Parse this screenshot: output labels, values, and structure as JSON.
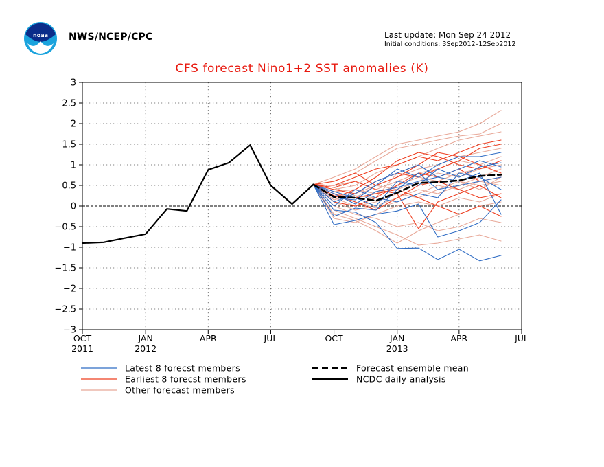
{
  "header": {
    "org": "NWS/NCEP/CPC",
    "last_update": "Last update: Mon Sep 24 2012",
    "initial_conditions": "Initial conditions: 3Sep2012–12Sep2012",
    "logo": "noaa-logo"
  },
  "colors": {
    "latest": "#2f6cc4",
    "earliest": "#ee3d1f",
    "other": "#e8a898",
    "analysis": "#000000",
    "mean": "#000000",
    "title": "#e8190f"
  },
  "chart_data": {
    "type": "line",
    "title": "CFS forecast Nino1+2 SST anomalies (K)",
    "xlabel": "",
    "ylabel": "",
    "ylim": [
      -3,
      3
    ],
    "yticks": [
      "3",
      "2.5",
      "2",
      "1.5",
      "1",
      "0.5",
      "0",
      "−0.5",
      "−1",
      "−1.5",
      "−2",
      "−2.5",
      "−3"
    ],
    "x_ticks": [
      {
        "label": "OCT",
        "year": "2011"
      },
      {
        "label": "JAN",
        "year": "2012"
      },
      {
        "label": "APR",
        "year": ""
      },
      {
        "label": "JUL",
        "year": ""
      },
      {
        "label": "OCT",
        "year": ""
      },
      {
        "label": "JAN",
        "year": "2013"
      },
      {
        "label": "APR",
        "year": ""
      },
      {
        "label": "JUL",
        "year": ""
      }
    ],
    "grid": true,
    "legend": {
      "position": "bottom",
      "items": [
        {
          "label": "Latest 8 forecst members",
          "style": "latest"
        },
        {
          "label": "Forecast ensemble mean",
          "style": "mean"
        },
        {
          "label": "Earliest 8 forecst members",
          "style": "earliest"
        },
        {
          "label": "NCDC daily analysis",
          "style": "analysis"
        },
        {
          "label": "Other forecast members",
          "style": "other"
        }
      ]
    },
    "analysis": {
      "name": "NCDC daily analysis",
      "x": [
        "2011-10",
        "2011-11",
        "2011-12",
        "2012-01",
        "2012-02",
        "2012-03",
        "2012-04",
        "2012-05",
        "2012-06",
        "2012-07",
        "2012-08",
        "2012-09"
      ],
      "y": [
        -0.9,
        -0.88,
        -0.78,
        -0.68,
        -0.07,
        -0.12,
        0.88,
        1.05,
        1.48,
        0.5,
        0.05,
        0.52
      ]
    },
    "ensemble_mean": {
      "name": "Forecast ensemble mean",
      "x": [
        "2012-09",
        "2012-10",
        "2012-11",
        "2012-12",
        "2013-01",
        "2013-02",
        "2013-03",
        "2013-04",
        "2013-05",
        "2013-06"
      ],
      "y": [
        0.52,
        0.22,
        0.2,
        0.13,
        0.32,
        0.56,
        0.58,
        0.62,
        0.73,
        0.76
      ]
    },
    "latest_members": {
      "name": "Latest 8 forecst members",
      "x": [
        "2012-09",
        "2012-10",
        "2012-11",
        "2012-12",
        "2013-01",
        "2013-02",
        "2013-03",
        "2013-04",
        "2013-05",
        "2013-06"
      ],
      "series": [
        [
          0.52,
          -0.1,
          -0.15,
          -0.4,
          -1.03,
          -1.02,
          -1.3,
          -1.05,
          -1.33,
          -1.2
        ],
        [
          0.52,
          -0.45,
          -0.35,
          -0.2,
          -0.12,
          0.05,
          -0.75,
          -0.6,
          -0.4,
          0.15
        ],
        [
          0.52,
          0.2,
          0.15,
          0.5,
          0.9,
          0.7,
          1.0,
          1.2,
          1.2,
          1.3
        ],
        [
          0.52,
          0.1,
          0.3,
          0.6,
          0.8,
          1.0,
          0.7,
          0.9,
          1.1,
          0.95
        ],
        [
          0.52,
          0.3,
          0.05,
          0.35,
          0.45,
          0.6,
          0.7,
          0.6,
          0.8,
          -0.2
        ],
        [
          0.52,
          -0.25,
          -0.05,
          -0.1,
          0.4,
          0.8,
          0.4,
          0.5,
          0.6,
          0.7
        ],
        [
          0.52,
          0.0,
          0.4,
          0.2,
          0.1,
          0.3,
          0.2,
          0.8,
          0.7,
          0.4
        ],
        [
          0.52,
          0.35,
          0.2,
          0.0,
          0.6,
          0.5,
          0.9,
          0.7,
          0.95,
          1.05
        ]
      ]
    },
    "earliest_members": {
      "name": "Earliest 8 forecst members",
      "x": [
        "2012-09",
        "2012-10",
        "2012-11",
        "2012-12",
        "2013-01",
        "2013-02",
        "2013-03",
        "2013-04",
        "2013-05",
        "2013-06"
      ],
      "series": [
        [
          0.52,
          0.5,
          0.7,
          0.9,
          1.0,
          1.2,
          1.1,
          1.3,
          1.5,
          1.6
        ],
        [
          0.52,
          0.4,
          0.3,
          0.6,
          0.8,
          0.7,
          0.9,
          1.1,
          1.4,
          1.5
        ],
        [
          0.52,
          0.3,
          0.1,
          -0.1,
          0.2,
          0.5,
          0.6,
          0.4,
          0.2,
          0.3
        ],
        [
          0.52,
          0.2,
          0.4,
          0.7,
          1.1,
          1.3,
          1.2,
          1.0,
          0.9,
          1.1
        ],
        [
          0.52,
          0.45,
          0.6,
          0.4,
          0.3,
          -0.55,
          0.1,
          0.3,
          0.5,
          0.2
        ],
        [
          0.52,
          0.1,
          0.0,
          0.2,
          0.5,
          0.8,
          0.7,
          0.9,
          0.6,
          0.7
        ],
        [
          0.52,
          0.6,
          0.8,
          0.5,
          0.7,
          1.0,
          1.3,
          1.2,
          1.0,
          0.8
        ],
        [
          0.52,
          0.25,
          0.2,
          0.3,
          0.4,
          0.2,
          0.0,
          -0.2,
          0.0,
          -0.25
        ]
      ]
    },
    "other_members": {
      "name": "Other forecast members",
      "x": [
        "2012-09",
        "2012-10",
        "2012-11",
        "2012-12",
        "2013-01",
        "2013-02",
        "2013-03",
        "2013-04",
        "2013-05",
        "2013-06"
      ],
      "series": [
        [
          0.52,
          0.7,
          0.9,
          1.2,
          1.5,
          1.6,
          1.7,
          1.8,
          2.0,
          2.32
        ],
        [
          0.52,
          0.6,
          0.8,
          1.1,
          1.4,
          1.5,
          1.6,
          1.7,
          1.75,
          2.0
        ],
        [
          0.52,
          0.4,
          0.5,
          0.8,
          1.0,
          1.2,
          1.4,
          1.6,
          1.7,
          1.8
        ],
        [
          0.52,
          0.3,
          0.2,
          0.5,
          0.7,
          0.9,
          1.0,
          1.2,
          1.3,
          1.4
        ],
        [
          0.52,
          -0.1,
          -0.3,
          -0.5,
          -0.7,
          -0.95,
          -0.9,
          -0.8,
          -0.7,
          -0.85
        ],
        [
          0.52,
          0.0,
          -0.2,
          -0.3,
          -0.5,
          -0.4,
          -0.6,
          -0.5,
          -0.3,
          -0.4
        ],
        [
          0.52,
          0.2,
          0.0,
          0.1,
          0.3,
          0.2,
          0.4,
          0.6,
          0.5,
          0.6
        ],
        [
          0.52,
          0.35,
          0.4,
          0.3,
          0.5,
          0.7,
          0.6,
          0.8,
          0.9,
          1.0
        ],
        [
          0.52,
          0.1,
          -0.1,
          0.0,
          0.2,
          0.4,
          0.3,
          0.5,
          0.7,
          0.9
        ],
        [
          0.52,
          -0.3,
          -0.4,
          -0.2,
          0.0,
          0.1,
          0.0,
          0.2,
          0.1,
          0.3
        ],
        [
          0.52,
          0.5,
          0.6,
          0.4,
          0.6,
          0.8,
          0.9,
          1.1,
          1.0,
          1.2
        ],
        [
          0.52,
          0.25,
          0.1,
          -0.05,
          0.1,
          0.3,
          0.5,
          0.4,
          0.6,
          0.5
        ],
        [
          0.52,
          0.15,
          0.3,
          0.5,
          0.4,
          0.6,
          0.8,
          0.7,
          0.9,
          1.1
        ],
        [
          0.52,
          -0.2,
          -0.35,
          -0.6,
          -0.9,
          -0.6,
          -0.4,
          -0.2,
          0.0,
          0.1
        ],
        [
          0.52,
          0.45,
          0.25,
          0.2,
          0.8,
          1.0,
          0.7,
          0.6,
          0.4,
          0.7
        ]
      ]
    }
  }
}
